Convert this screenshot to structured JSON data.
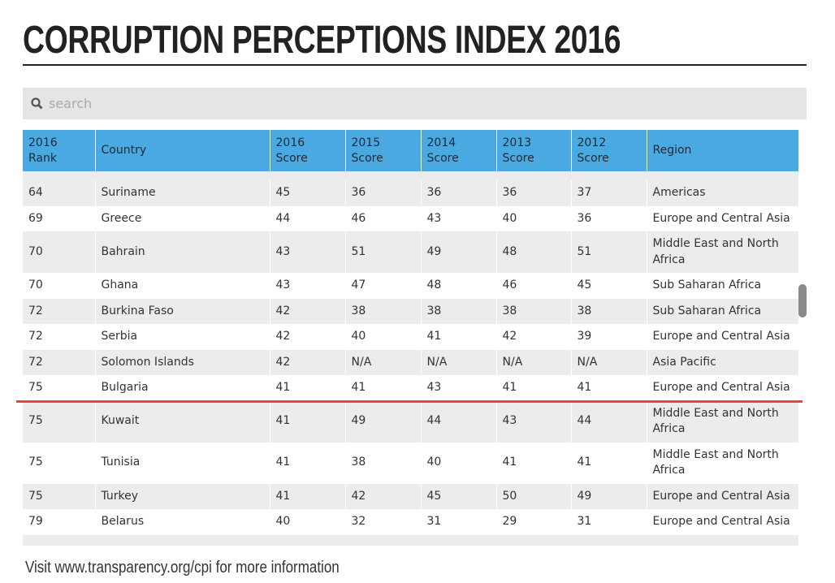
{
  "title": "CORRUPTION PERCEPTIONS INDEX 2016",
  "search": {
    "placeholder": "search"
  },
  "table": {
    "headers": [
      "2016 Rank",
      "Country",
      "2016 Score",
      "2015 Score",
      "2014 Score",
      "2013 Score",
      "2012 Score",
      "Region"
    ],
    "rows": [
      [
        "64",
        "Suriname",
        "45",
        "36",
        "36",
        "36",
        "37",
        "Americas"
      ],
      [
        "69",
        "Greece",
        "44",
        "46",
        "43",
        "40",
        "36",
        "Europe and Central Asia"
      ],
      [
        "70",
        "Bahrain",
        "43",
        "51",
        "49",
        "48",
        "51",
        "Middle East and North Africa"
      ],
      [
        "70",
        "Ghana",
        "43",
        "47",
        "48",
        "46",
        "45",
        "Sub Saharan Africa"
      ],
      [
        "72",
        "Burkina Faso",
        "42",
        "38",
        "38",
        "38",
        "38",
        "Sub Saharan Africa"
      ],
      [
        "72",
        "Serbia",
        "42",
        "40",
        "41",
        "42",
        "39",
        "Europe and Central Asia"
      ],
      [
        "72",
        "Solomon Islands",
        "42",
        "N/A",
        "N/A",
        "N/A",
        "N/A",
        "Asia Pacific"
      ],
      [
        "75",
        "Bulgaria",
        "41",
        "41",
        "43",
        "41",
        "41",
        "Europe and Central Asia"
      ],
      [
        "75",
        "Kuwait",
        "41",
        "49",
        "44",
        "43",
        "44",
        "Middle East and North Africa"
      ],
      [
        "75",
        "Tunisia",
        "41",
        "38",
        "40",
        "41",
        "41",
        "Middle East and North Africa"
      ],
      [
        "75",
        "Turkey",
        "41",
        "42",
        "45",
        "50",
        "49",
        "Europe and Central Asia"
      ],
      [
        "79",
        "Belarus",
        "40",
        "32",
        "31",
        "29",
        "31",
        "Europe and Central Asia"
      ]
    ]
  },
  "footer": "Visit www.transparency.org/cpi for more information"
}
